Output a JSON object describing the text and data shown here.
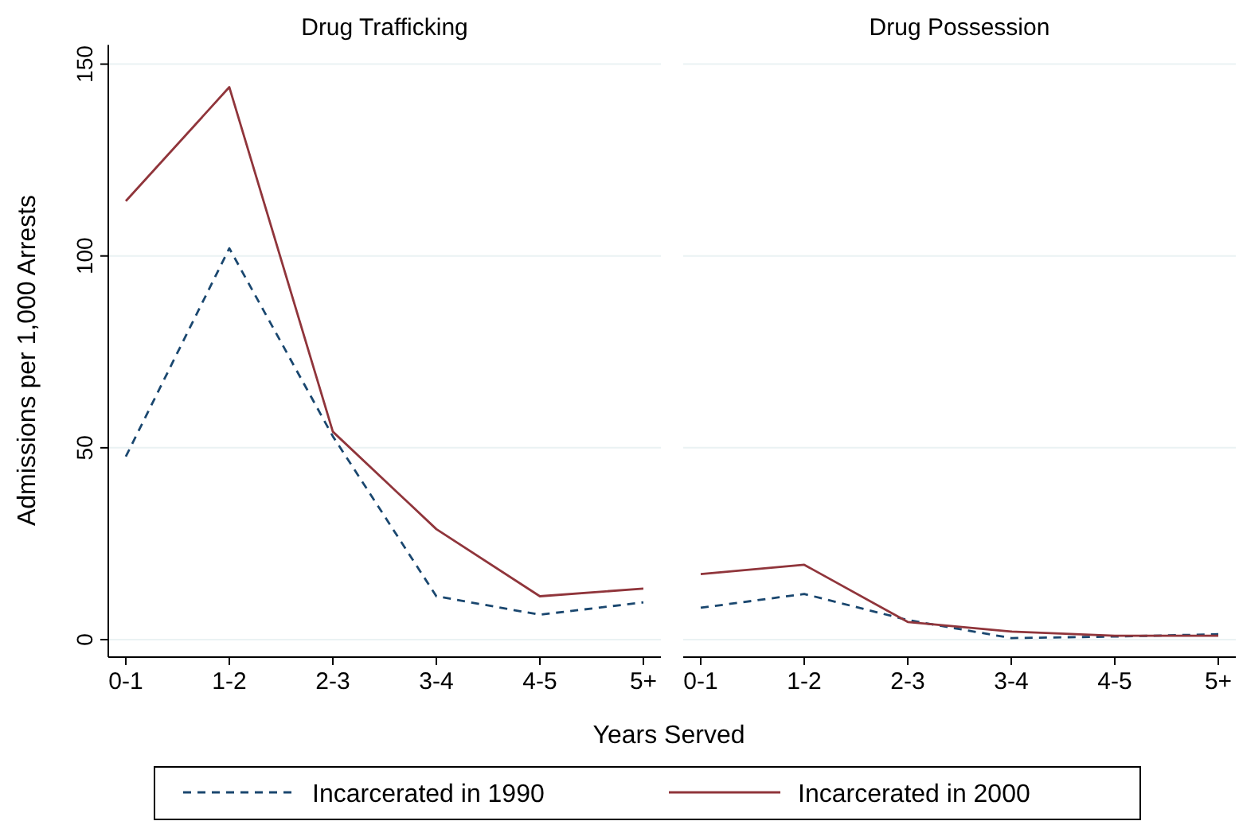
{
  "chart_data": [
    {
      "type": "line",
      "title": "Drug Trafficking",
      "xlabel": "Years Served",
      "ylabel": "Admissions per 1,000 Arrests",
      "categories": [
        "0-1",
        "1-2",
        "2-3",
        "3-4",
        "4-5",
        "5+"
      ],
      "ylim": [
        0,
        155
      ],
      "yticks": [
        0,
        50,
        100,
        150
      ],
      "grid": "y",
      "legend": "bottom",
      "series": [
        {
          "name": "Incarcerated in 1990",
          "color": "#1a476f",
          "line_style": "dashed",
          "values": [
            47.7,
            102,
            53,
            11.3,
            6.5,
            9.7
          ]
        },
        {
          "name": "Incarcerated in 2000",
          "color": "#90353b",
          "line_style": "solid",
          "values": [
            114.3,
            144,
            54.2,
            28.8,
            11.3,
            13.3
          ]
        }
      ]
    },
    {
      "type": "line",
      "title": "Drug Possession",
      "categories": [
        "0-1",
        "1-2",
        "2-3",
        "3-4",
        "4-5",
        "5+"
      ],
      "ylim": [
        0,
        150
      ],
      "yticks": [
        0,
        50,
        100,
        150
      ],
      "grid": "y",
      "tick_labels": "x",
      "series": [
        {
          "color": "#1a476f",
          "line_style": "dashed",
          "values": [
            8.3,
            11.9,
            5.1,
            0.4,
            0.8,
            1.4
          ]
        },
        {
          "color": "#90353b",
          "line_style": "solid",
          "values": [
            17.1,
            19.5,
            4.6,
            2.1,
            1.0,
            1.0
          ]
        }
      ]
    }
  ]
}
